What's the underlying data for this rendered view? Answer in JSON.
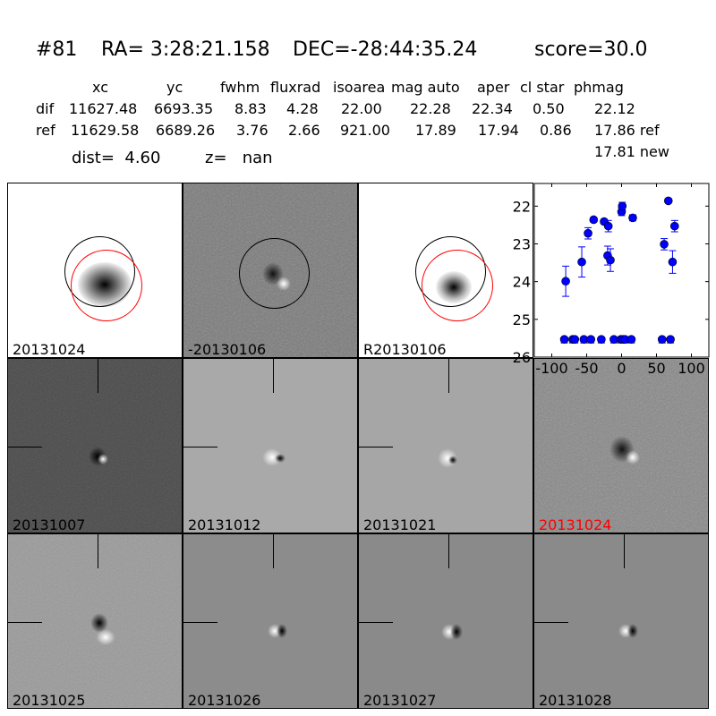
{
  "title": {
    "id": "#81",
    "ra": "RA= 3:28:21.158",
    "dec": "DEC=-28:44:35.24",
    "score": "score=30.0"
  },
  "table": {
    "headers": [
      "xc",
      "yc",
      "fwhm",
      "fluxrad",
      "isoarea",
      "mag auto",
      "aper",
      "cl star",
      "phmag"
    ],
    "dif": {
      "label": "dif",
      "values": [
        "11627.48",
        "6693.35",
        "8.83",
        "4.28",
        "22.00",
        "22.28",
        "22.34",
        "0.50",
        "22.12"
      ]
    },
    "ref": {
      "label": "ref",
      "values": [
        "11629.58",
        "6689.26",
        "3.76",
        "2.66",
        "921.00",
        "17.89",
        "17.94",
        "0.86",
        "17.86 ref"
      ]
    },
    "new_phmag": "17.81 new"
  },
  "dist": "dist=  4.60",
  "z": "z=   nan",
  "panels": {
    "top": [
      "20131024",
      "-20130106",
      "R20130106"
    ],
    "row2": [
      "20131007",
      "20131012",
      "20131021",
      "20131024"
    ],
    "row3": [
      "20131025",
      "20131026",
      "20131027",
      "20131028"
    ],
    "highlight_color": "#ff0000"
  },
  "chart_data": {
    "type": "scatter",
    "xlim": [
      -125,
      125
    ],
    "ylim": [
      26,
      21.4
    ],
    "y_inverted": true,
    "xticks": [
      -100,
      -50,
      0,
      50,
      100
    ],
    "yticks": [
      22,
      23,
      24,
      25,
      26
    ],
    "color": "#0000ff",
    "points": [
      {
        "x": -80,
        "y": 23.99,
        "err": 0.4
      },
      {
        "x": -57,
        "y": 23.48,
        "err": 0.4
      },
      {
        "x": -48,
        "y": 22.72,
        "err": 0.15
      },
      {
        "x": -40,
        "y": 22.36,
        "err": 0.05
      },
      {
        "x": -25,
        "y": 22.41,
        "err": 0.06
      },
      {
        "x": -19,
        "y": 22.53,
        "err": 0.15
      },
      {
        "x": -20,
        "y": 23.31,
        "err": 0.25
      },
      {
        "x": -16,
        "y": 23.43,
        "err": 0.3
      },
      {
        "x": 0,
        "y": 22.15,
        "err": 0.1
      },
      {
        "x": 1,
        "y": 22.0,
        "err": 0.1
      },
      {
        "x": 16,
        "y": 22.31,
        "err": 0.08
      },
      {
        "x": 61,
        "y": 23.01,
        "err": 0.15
      },
      {
        "x": 67,
        "y": 21.86,
        "err": 0.05
      },
      {
        "x": 76,
        "y": 22.53,
        "err": 0.15
      },
      {
        "x": 73,
        "y": 23.48,
        "err": 0.3
      }
    ],
    "limits": {
      "y": 25.53,
      "x": [
        -82,
        -70,
        -67,
        -54,
        -44,
        -29,
        -11,
        -1,
        2,
        5,
        14,
        58,
        70
      ]
    }
  }
}
